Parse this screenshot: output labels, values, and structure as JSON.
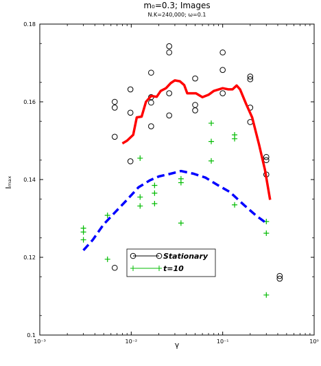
{
  "chart_data": {
    "type": "scatter",
    "title": "m₀=0.3;  Images",
    "subtitle": "N.K=240,000; ω=0.1",
    "xlabel": "γ",
    "ylabel": "Iₘₐₓ",
    "x_scale": "log",
    "xlim": [
      0.001,
      1
    ],
    "ylim": [
      0.1,
      0.18
    ],
    "x_ticks": [
      0.001,
      0.01,
      0.1,
      1
    ],
    "x_tick_labels": [
      "10⁻³",
      "10⁻²",
      "10⁻¹",
      "10⁰"
    ],
    "y_ticks": [
      0.1,
      0.12,
      0.14,
      0.16,
      0.18
    ],
    "y_tick_labels": [
      "0.1",
      "0.12",
      "0.14",
      "0.16",
      "0.18"
    ],
    "grid": false,
    "legend_position": "bottom-center",
    "legend": [
      {
        "label": "Stationary",
        "marker": "circle",
        "color": "#000000"
      },
      {
        "label": "t=10",
        "marker": "plus",
        "color": "#00bb00"
      }
    ],
    "series": [
      {
        "name": "Stationary",
        "marker": "circle",
        "color": "#000000",
        "points": [
          [
            0.0066,
            0.151
          ],
          [
            0.0066,
            0.1585
          ],
          [
            0.0066,
            0.16
          ],
          [
            0.0066,
            0.1173
          ],
          [
            0.0098,
            0.1447
          ],
          [
            0.0098,
            0.1572
          ],
          [
            0.0098,
            0.1632
          ],
          [
            0.0165,
            0.1537
          ],
          [
            0.0165,
            0.1598
          ],
          [
            0.0165,
            0.1612
          ],
          [
            0.0165,
            0.1675
          ],
          [
            0.026,
            0.1565
          ],
          [
            0.026,
            0.1622
          ],
          [
            0.026,
            0.1727
          ],
          [
            0.026,
            0.1743
          ],
          [
            0.05,
            0.1578
          ],
          [
            0.05,
            0.1592
          ],
          [
            0.05,
            0.166
          ],
          [
            0.1,
            0.1622
          ],
          [
            0.1,
            0.1682
          ],
          [
            0.1,
            0.1727
          ],
          [
            0.2,
            0.1548
          ],
          [
            0.2,
            0.1585
          ],
          [
            0.2,
            0.1658
          ],
          [
            0.2,
            0.1665
          ],
          [
            0.3,
            0.1413
          ],
          [
            0.3,
            0.145
          ],
          [
            0.3,
            0.1458
          ],
          [
            0.42,
            0.1145
          ],
          [
            0.42,
            0.1152
          ]
        ]
      },
      {
        "name": "t=10",
        "marker": "plus",
        "color": "#00bb00",
        "points": [
          [
            0.003,
            0.1245
          ],
          [
            0.003,
            0.1265
          ],
          [
            0.003,
            0.1275
          ],
          [
            0.0055,
            0.1195
          ],
          [
            0.0055,
            0.1308
          ],
          [
            0.0125,
            0.1332
          ],
          [
            0.0125,
            0.1355
          ],
          [
            0.0125,
            0.1455
          ],
          [
            0.018,
            0.1338
          ],
          [
            0.018,
            0.1365
          ],
          [
            0.018,
            0.1385
          ],
          [
            0.035,
            0.1288
          ],
          [
            0.035,
            0.1392
          ],
          [
            0.035,
            0.1402
          ],
          [
            0.075,
            0.1448
          ],
          [
            0.075,
            0.1498
          ],
          [
            0.075,
            0.1545
          ],
          [
            0.135,
            0.1335
          ],
          [
            0.135,
            0.1505
          ],
          [
            0.135,
            0.1515
          ],
          [
            0.3,
            0.1103
          ],
          [
            0.3,
            0.1262
          ],
          [
            0.3,
            0.1292
          ]
        ]
      },
      {
        "name": "Stationary",
        "style": "solid-line",
        "color": "#ff0000",
        "points": [
          [
            0.008,
            0.1493
          ],
          [
            0.009,
            0.15
          ],
          [
            0.0105,
            0.1515
          ],
          [
            0.0115,
            0.156
          ],
          [
            0.013,
            0.1562
          ],
          [
            0.0145,
            0.16
          ],
          [
            0.0165,
            0.1615
          ],
          [
            0.019,
            0.1613
          ],
          [
            0.021,
            0.1628
          ],
          [
            0.024,
            0.1635
          ],
          [
            0.027,
            0.1648
          ],
          [
            0.03,
            0.1655
          ],
          [
            0.034,
            0.1653
          ],
          [
            0.038,
            0.1643
          ],
          [
            0.041,
            0.1622
          ],
          [
            0.051,
            0.1622
          ],
          [
            0.06,
            0.1612
          ],
          [
            0.07,
            0.1618
          ],
          [
            0.08,
            0.1628
          ],
          [
            0.1,
            0.1635
          ],
          [
            0.115,
            0.1632
          ],
          [
            0.128,
            0.1632
          ],
          [
            0.142,
            0.1642
          ],
          [
            0.155,
            0.1632
          ],
          [
            0.18,
            0.1595
          ],
          [
            0.21,
            0.156
          ],
          [
            0.25,
            0.149
          ],
          [
            0.29,
            0.1425
          ],
          [
            0.33,
            0.1348
          ]
        ]
      },
      {
        "name": "t=10",
        "style": "dashed-line",
        "color": "#0000ff",
        "points": [
          [
            0.003,
            0.1218
          ],
          [
            0.0038,
            0.1245
          ],
          [
            0.005,
            0.1285
          ],
          [
            0.0068,
            0.1318
          ],
          [
            0.009,
            0.1348
          ],
          [
            0.012,
            0.138
          ],
          [
            0.016,
            0.1398
          ],
          [
            0.02,
            0.1408
          ],
          [
            0.027,
            0.1415
          ],
          [
            0.035,
            0.1422
          ],
          [
            0.048,
            0.1415
          ],
          [
            0.065,
            0.1405
          ],
          [
            0.085,
            0.1388
          ],
          [
            0.12,
            0.1368
          ],
          [
            0.17,
            0.1335
          ],
          [
            0.23,
            0.1308
          ],
          [
            0.3,
            0.1288
          ]
        ]
      }
    ]
  }
}
